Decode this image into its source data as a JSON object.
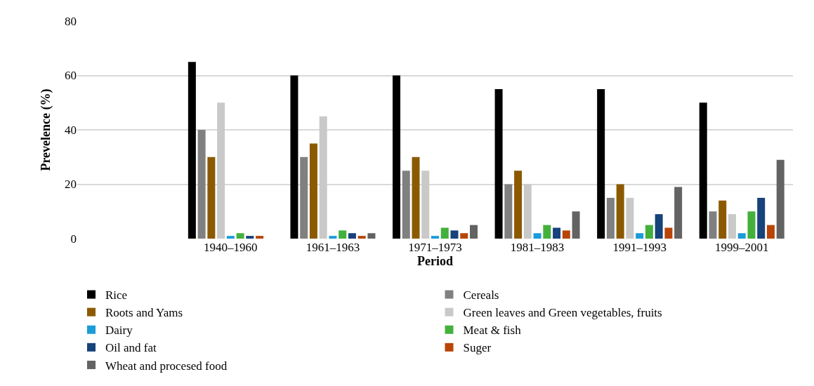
{
  "chart_data": {
    "type": "bar",
    "xlabel": "Period",
    "ylabel": "Prevelence (%)",
    "categories": [
      null,
      "1940–1960",
      "1961–1963",
      "1971–1973",
      "1981–1983",
      "1991–1993",
      "1999–2001"
    ],
    "series": [
      {
        "name": "Rice",
        "color": "#000000",
        "values": [
          null,
          65,
          60,
          60,
          55,
          55,
          50
        ]
      },
      {
        "name": "Cereals",
        "color": "#808080",
        "values": [
          null,
          40,
          30,
          25,
          20,
          15,
          10
        ]
      },
      {
        "name": "Roots and Yams",
        "color": "#8b5a00",
        "values": [
          null,
          30,
          35,
          30,
          25,
          20,
          14
        ]
      },
      {
        "name": "Green leaves and Green vegetables, fruits",
        "color": "#c9c9c9",
        "values": [
          null,
          50,
          45,
          25,
          20,
          15,
          9
        ]
      },
      {
        "name": "Dairy",
        "color": "#1b9cd8",
        "values": [
          null,
          1,
          1,
          1,
          2,
          2,
          2
        ]
      },
      {
        "name": "Meat & fish",
        "color": "#44b03c",
        "values": [
          null,
          2,
          3,
          4,
          5,
          5,
          10
        ]
      },
      {
        "name": "Oil and fat",
        "color": "#17427a",
        "values": [
          null,
          1,
          2,
          3,
          4,
          9,
          15
        ]
      },
      {
        "name": "Suger",
        "color": "#b84506",
        "values": [
          null,
          1,
          1,
          2,
          3,
          4,
          5
        ]
      },
      {
        "name": "Wheat and procesed food",
        "color": "#636363",
        "values": [
          null,
          0,
          2,
          5,
          10,
          19,
          29
        ]
      }
    ],
    "ylim": [
      0,
      80
    ],
    "yticks": [
      0,
      20,
      40,
      60,
      80
    ],
    "grid": "y",
    "legend": "bottom"
  }
}
